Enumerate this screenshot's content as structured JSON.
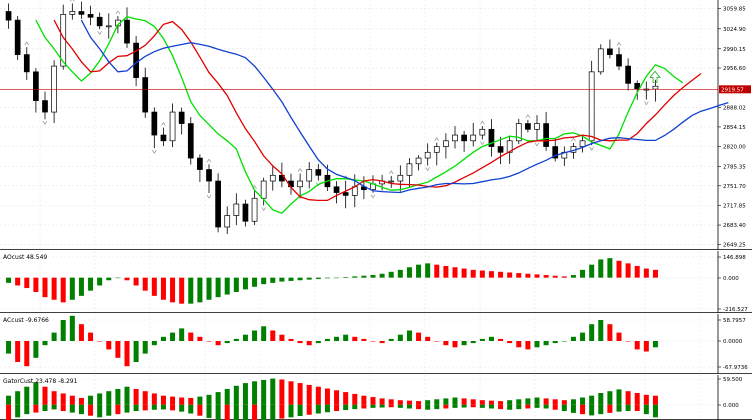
{
  "colors": {
    "bull": "#008000",
    "bear": "#ff0000",
    "candle": "#000000",
    "grid": "#e6e6e6",
    "ma_fast": "#00e000",
    "ma_mid": "#e00000",
    "ma_slow": "#1040d0",
    "price_line": "#c00000",
    "fractal": "#909090",
    "arrow": "#22aa22"
  },
  "main": {
    "ticks": [
      "3059.85",
      "3024.90",
      "2990.15",
      "2956.60",
      "2888.02",
      "2854.15",
      "2820.00",
      "2785.35",
      "2751.70",
      "2717.85",
      "2683.40",
      "2649.25"
    ],
    "current_price": "2919.57"
  },
  "panes": {
    "ao": {
      "label": "AOcust 48.549",
      "ticks": [
        "146.898",
        "0.000",
        "-216.527"
      ]
    },
    "ac": {
      "label": "ACcust -9.6766",
      "ticks": [
        "58.7957",
        "0.0000",
        "-67.9736"
      ]
    },
    "gator": {
      "label": "GatorCust 23.478 -8.291",
      "ticks": [
        "59.500",
        "0.000"
      ]
    }
  },
  "chart_data": [
    {
      "type": "candlestick",
      "price_axis_ticks": [
        3059.85,
        3024.9,
        2990.15,
        2956.6,
        2888.02,
        2854.15,
        2820.0,
        2785.35,
        2751.7,
        2717.85,
        2683.4,
        2649.25
      ],
      "current_price": 2919.57,
      "ohlc_close_path": [
        3040,
        2980,
        2950,
        2900,
        2880,
        2960,
        3050,
        3055,
        3050,
        3045,
        3030,
        3030,
        3040,
        3000,
        2940,
        2880,
        2840,
        2830,
        2880,
        2860,
        2800,
        2780,
        2760,
        2680,
        2700,
        2720,
        2690,
        2730,
        2760,
        2770,
        2760,
        2750,
        2760,
        2780,
        2770,
        2750,
        2740,
        2735,
        2750,
        2745,
        2755,
        2760,
        2760,
        2770,
        2790,
        2800,
        2810,
        2820,
        2830,
        2840,
        2830,
        2840,
        2850,
        2820,
        2810,
        2830,
        2860,
        2850,
        2860,
        2820,
        2800,
        2810,
        2820,
        2830,
        2950,
        2990,
        2980,
        2960,
        2930,
        2920,
        2920,
        2925
      ]
    },
    {
      "type": "bar",
      "name": "AOcust",
      "values": [
        -40,
        -60,
        -80,
        -110,
        -150,
        -170,
        -190,
        -170,
        -140,
        -100,
        -60,
        -20,
        0,
        -20,
        -60,
        -100,
        -140,
        -170,
        -190,
        -200,
        -200,
        -190,
        -170,
        -150,
        -130,
        -110,
        -90,
        -70,
        -50,
        -40,
        -30,
        -25,
        -20,
        -15,
        -10,
        -5,
        0,
        5,
        10,
        15,
        20,
        30,
        45,
        60,
        80,
        100,
        110,
        100,
        90,
        80,
        70,
        60,
        55,
        50,
        45,
        40,
        35,
        30,
        25,
        20,
        15,
        10,
        20,
        60,
        100,
        140,
        150,
        130,
        110,
        90,
        70,
        60
      ]
    },
    {
      "type": "bar",
      "name": "ACcust",
      "values": [
        -30,
        -50,
        -60,
        -40,
        -10,
        20,
        50,
        60,
        40,
        20,
        0,
        -20,
        -40,
        -60,
        -50,
        -30,
        -10,
        10,
        20,
        30,
        20,
        10,
        0,
        -10,
        -5,
        5,
        15,
        25,
        35,
        25,
        15,
        5,
        -5,
        -10,
        -5,
        5,
        10,
        15,
        10,
        5,
        0,
        -5,
        5,
        15,
        25,
        20,
        10,
        0,
        -10,
        -15,
        -10,
        -5,
        5,
        10,
        5,
        -5,
        -15,
        -20,
        -15,
        -10,
        -5,
        0,
        10,
        20,
        40,
        50,
        40,
        20,
        0,
        -20,
        -25,
        -15
      ]
    },
    {
      "type": "bar",
      "name": "GatorCust",
      "values": [
        20,
        30,
        40,
        50,
        40,
        30,
        25,
        20,
        15,
        20,
        25,
        30,
        35,
        40,
        35,
        30,
        25,
        20,
        18,
        16,
        15,
        18,
        22,
        28,
        35,
        42,
        48,
        52,
        55,
        58,
        56,
        52,
        48,
        44,
        40,
        36,
        32,
        28,
        24,
        20,
        17,
        14,
        12,
        10,
        9,
        8,
        10,
        12,
        14,
        16,
        14,
        12,
        10,
        9,
        8,
        10,
        12,
        14,
        16,
        14,
        12,
        10,
        12,
        16,
        20,
        26,
        30,
        34,
        30,
        26,
        22,
        20
      ]
    }
  ]
}
